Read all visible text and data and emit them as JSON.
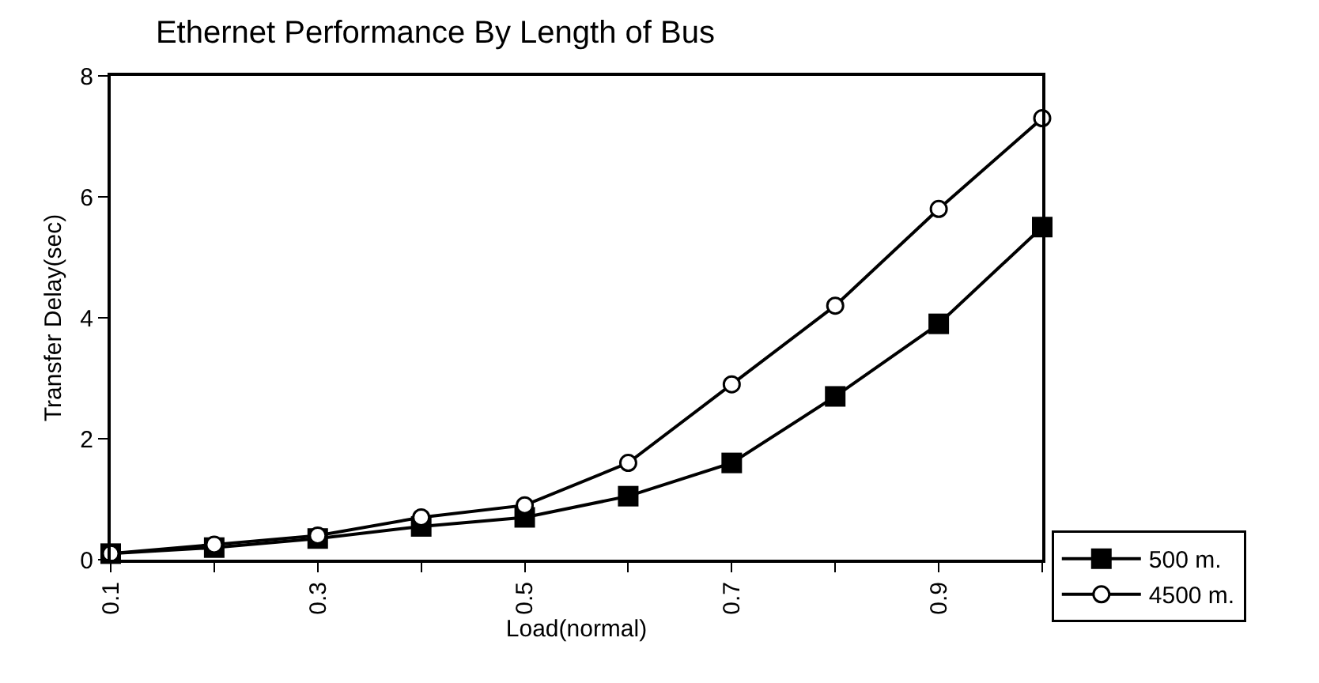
{
  "chart_data": {
    "type": "line",
    "title": "Ethernet Performance By Length of Bus",
    "xlabel": "Load(normal)",
    "ylabel": "Transfer Delay(sec)",
    "x": [
      0.1,
      0.2,
      0.3,
      0.4,
      0.5,
      0.6,
      0.7,
      0.8,
      0.9,
      1.0
    ],
    "series": [
      {
        "name": "500 m.",
        "color": "#000000",
        "marker": "square",
        "values": [
          0.1,
          0.2,
          0.35,
          0.55,
          0.7,
          1.05,
          1.6,
          2.7,
          3.9,
          5.5
        ]
      },
      {
        "name": "4500 m.",
        "color": "#000000",
        "marker": "circle",
        "values": [
          0.1,
          0.25,
          0.4,
          0.7,
          0.9,
          1.6,
          2.9,
          4.2,
          5.8,
          7.3
        ]
      }
    ],
    "xlim": [
      0.1,
      1.0
    ],
    "xticks": [
      0.1,
      {
        "value": 0.2,
        "label": null
      },
      0.3,
      {
        "value": 0.4,
        "label": null
      },
      0.5,
      {
        "value": 0.6,
        "label": null
      },
      0.7,
      {
        "value": 0.8,
        "label": null
      },
      0.9,
      {
        "value": 1.0,
        "label": null
      }
    ],
    "ylim": [
      0,
      8
    ],
    "yticks": [
      0,
      2,
      4,
      6,
      8
    ],
    "legend": "bottom right",
    "line_style": "solid"
  }
}
